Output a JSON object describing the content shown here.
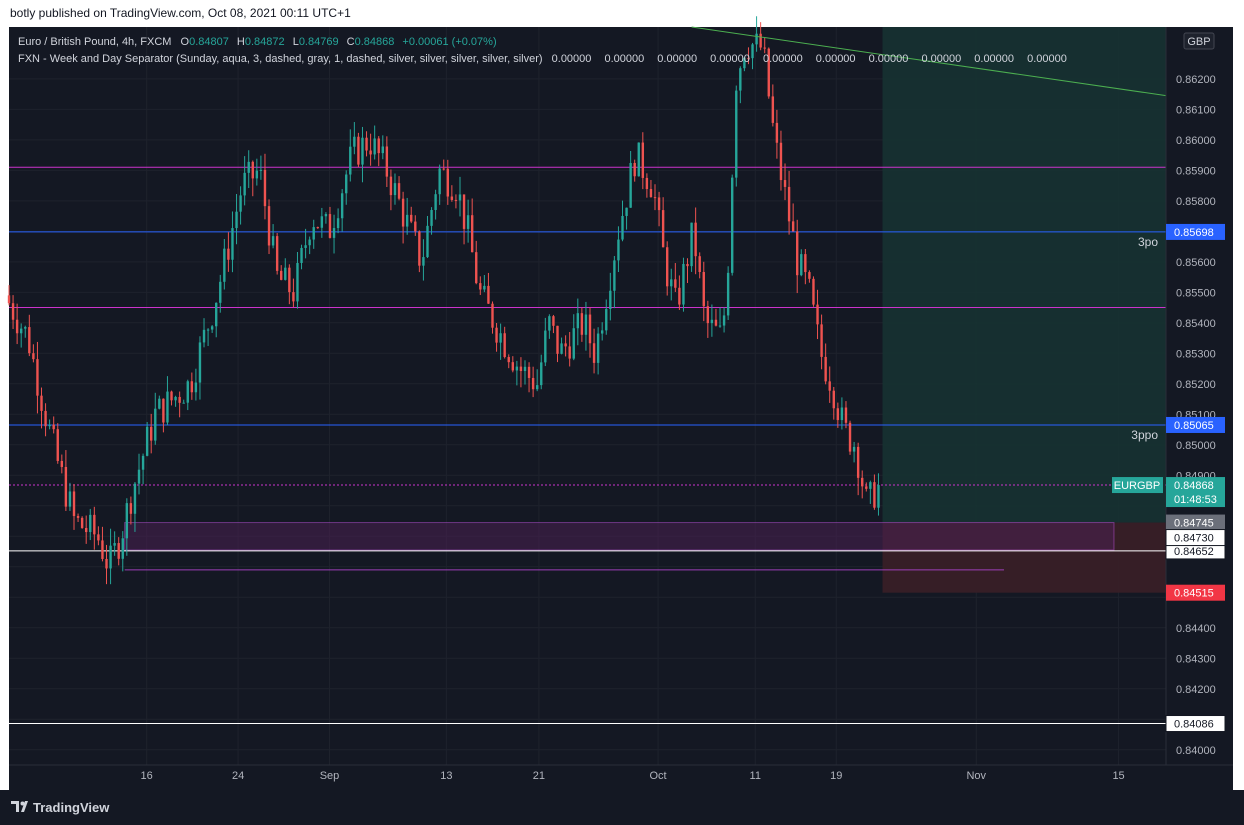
{
  "caption": "botly published on TradingView.com, Oct 08, 2021 00:11 UTC+1",
  "brand": {
    "logo_icon": "tradingview-logo-icon",
    "name": "TradingView"
  },
  "legend": {
    "symbol": "Euro / British Pound, 4h, FXCM",
    "ohlc": [
      {
        "k": "O",
        "v": "0.84807"
      },
      {
        "k": "H",
        "v": "0.84872"
      },
      {
        "k": "L",
        "v": "0.84769"
      },
      {
        "k": "C",
        "v": "0.84868"
      }
    ],
    "change": "+0.00061 (+0.07%)",
    "indicator": "FXN - Week and Day Separator (Sunday, aqua, 3, dashed, gray, 1, dashed, silver, silver, silver, silver, silver)",
    "indicator_values": [
      "0.00000",
      "0.00000",
      "0.00000",
      "0.00000",
      "0.00000",
      "0.00000",
      "0.00000",
      "0.00000",
      "0.00000",
      "0.00000"
    ]
  },
  "currency": "GBP",
  "colors": {
    "bg": "#141823",
    "grid": "#1e222d",
    "up": "#26a69a",
    "down": "#ef5350",
    "magenta": "#cc33cc",
    "blue": "#2962ff",
    "white": "#ffffff",
    "green_line": "#4caf50",
    "profit_zone": "#163433",
    "loss_zone": "#3a1f27",
    "purple_zone": "#4a2052",
    "label": "#d1d4dc"
  },
  "chart_data": {
    "type": "candlestick",
    "symbol": "EURGBP",
    "timeframe": "4h",
    "ylim": [
      0.8395,
      0.8637
    ],
    "x_ticks": [
      "16",
      "24",
      "Sep",
      "13",
      "21",
      "Oct",
      "11",
      "19",
      "Nov",
      "15"
    ],
    "y_ticks": [
      "0.86200",
      "0.86100",
      "0.86000",
      "0.85900",
      "0.85800",
      "0.85600",
      "0.85500",
      "0.85400",
      "0.85300",
      "0.85200",
      "0.85100",
      "0.85000",
      "0.84900",
      "0.84400",
      "0.84300",
      "0.84200",
      "0.84000"
    ],
    "path_anchors": [
      {
        "x": 0,
        "y": 0.8549
      },
      {
        "x": 0.02,
        "y": 0.8535
      },
      {
        "x": 0.035,
        "y": 0.851
      },
      {
        "x": 0.045,
        "y": 0.8495
      },
      {
        "x": 0.06,
        "y": 0.8475
      },
      {
        "x": 0.08,
        "y": 0.847
      },
      {
        "x": 0.09,
        "y": 0.846
      },
      {
        "x": 0.1,
        "y": 0.847
      },
      {
        "x": 0.11,
        "y": 0.8485
      },
      {
        "x": 0.13,
        "y": 0.851
      },
      {
        "x": 0.16,
        "y": 0.852
      },
      {
        "x": 0.18,
        "y": 0.8545
      },
      {
        "x": 0.19,
        "y": 0.856
      },
      {
        "x": 0.205,
        "y": 0.8585
      },
      {
        "x": 0.22,
        "y": 0.859
      },
      {
        "x": 0.235,
        "y": 0.8555
      },
      {
        "x": 0.25,
        "y": 0.855
      },
      {
        "x": 0.265,
        "y": 0.8575
      },
      {
        "x": 0.28,
        "y": 0.857
      },
      {
        "x": 0.3,
        "y": 0.8595
      },
      {
        "x": 0.315,
        "y": 0.86
      },
      {
        "x": 0.33,
        "y": 0.859
      },
      {
        "x": 0.345,
        "y": 0.8575
      },
      {
        "x": 0.36,
        "y": 0.856
      },
      {
        "x": 0.375,
        "y": 0.859
      },
      {
        "x": 0.39,
        "y": 0.8585
      },
      {
        "x": 0.4,
        "y": 0.857
      },
      {
        "x": 0.41,
        "y": 0.855
      },
      {
        "x": 0.43,
        "y": 0.8535
      },
      {
        "x": 0.445,
        "y": 0.8525
      },
      {
        "x": 0.46,
        "y": 0.852
      },
      {
        "x": 0.47,
        "y": 0.854
      },
      {
        "x": 0.48,
        "y": 0.853
      },
      {
        "x": 0.5,
        "y": 0.854
      },
      {
        "x": 0.51,
        "y": 0.853
      },
      {
        "x": 0.53,
        "y": 0.857
      },
      {
        "x": 0.545,
        "y": 0.8595
      },
      {
        "x": 0.56,
        "y": 0.8585
      },
      {
        "x": 0.57,
        "y": 0.856
      },
      {
        "x": 0.58,
        "y": 0.8545
      },
      {
        "x": 0.595,
        "y": 0.857
      },
      {
        "x": 0.605,
        "y": 0.854
      },
      {
        "x": 0.62,
        "y": 0.8535
      },
      {
        "x": 0.625,
        "y": 0.856
      },
      {
        "x": 0.632,
        "y": 0.862
      },
      {
        "x": 0.64,
        "y": 0.8632
      },
      {
        "x": 0.655,
        "y": 0.863
      },
      {
        "x": 0.665,
        "y": 0.86
      },
      {
        "x": 0.675,
        "y": 0.858
      },
      {
        "x": 0.685,
        "y": 0.856
      },
      {
        "x": 0.695,
        "y": 0.855
      },
      {
        "x": 0.705,
        "y": 0.853
      },
      {
        "x": 0.715,
        "y": 0.852
      },
      {
        "x": 0.725,
        "y": 0.8505
      },
      {
        "x": 0.735,
        "y": 0.85
      },
      {
        "x": 0.745,
        "y": 0.848
      },
      {
        "x": 0.755,
        "y": 0.8487
      }
    ],
    "hlines": [
      {
        "value": 0.8591,
        "color": "magenta",
        "style": "solid"
      },
      {
        "value": 0.85698,
        "color": "blue",
        "style": "solid",
        "label": "3po",
        "badge": "0.85698"
      },
      {
        "value": 0.8545,
        "color": "magenta",
        "style": "solid"
      },
      {
        "value": 0.85065,
        "color": "blue",
        "style": "solid",
        "label": "3ppo",
        "badge": "0.85065"
      },
      {
        "value": 0.84868,
        "color": "magenta",
        "style": "dotted"
      },
      {
        "value": 0.84652,
        "color": "white",
        "style": "solid",
        "badge": "0.84652"
      },
      {
        "value": 0.84086,
        "color": "white",
        "style": "solid",
        "badge": "0.84086"
      }
    ],
    "current_price": {
      "symbol_label": "EURGBP",
      "value": "0.84868",
      "countdown": "01:48:53"
    },
    "position": {
      "entry": "0.84745",
      "target_level": 0.8637,
      "stop": "0.84515",
      "start_x": 0.755
    },
    "zone": {
      "top": 0.84745,
      "bottom": 0.84655,
      "x_start": 0.1,
      "x_end": 0.955,
      "badge": "0.84730"
    },
    "thin_line": {
      "value": 0.8459,
      "x_start": 0.1,
      "x_end": 0.86
    },
    "trendline": {
      "x_start": 0.59,
      "y_start": 0.8637,
      "x_end": 1.0,
      "y_end": 0.86145
    }
  }
}
